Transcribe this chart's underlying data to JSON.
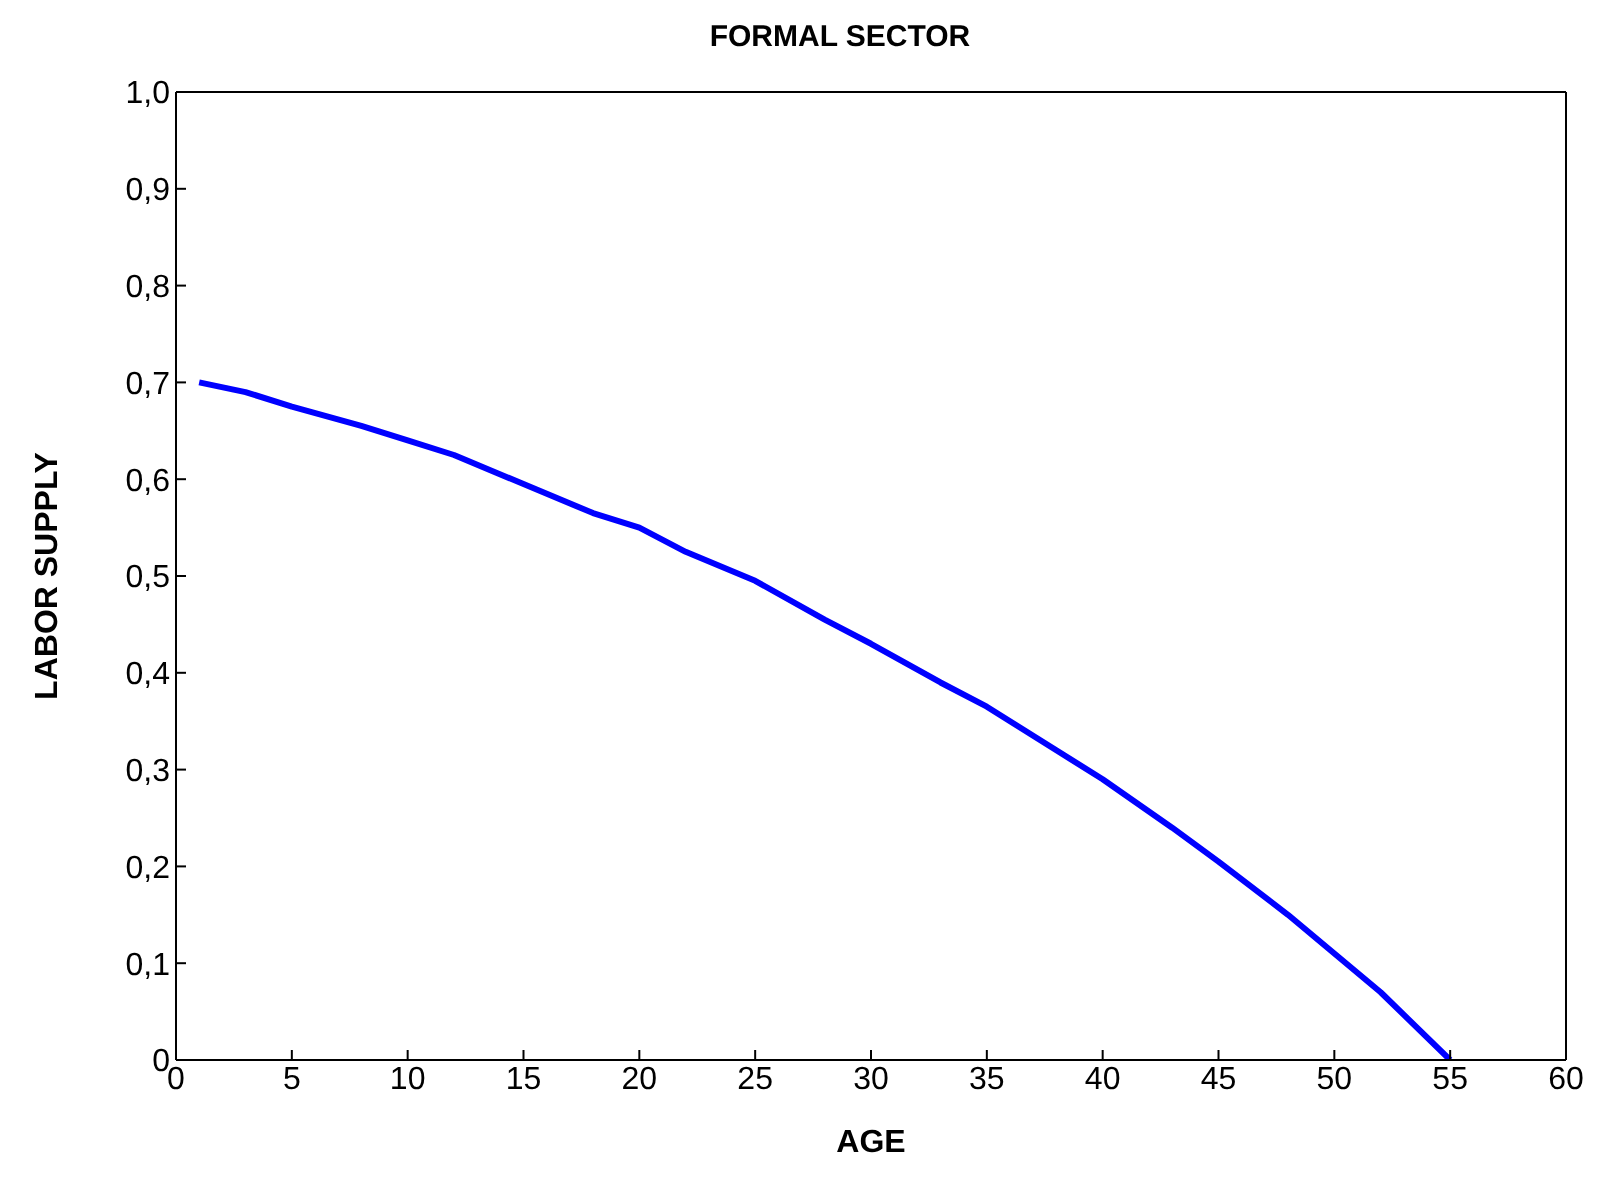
{
  "chart_data": {
    "type": "line",
    "title": "FORMAL SECTOR",
    "xlabel": "AGE",
    "ylabel": "LABOR SUPPLY",
    "x": [
      1,
      3,
      5,
      8,
      10,
      12,
      15,
      18,
      20,
      22,
      25,
      28,
      30,
      33,
      35,
      38,
      40,
      43,
      45,
      48,
      50,
      52,
      55
    ],
    "series": [
      {
        "color": "#0000ff",
        "values": [
          0.7,
          0.69,
          0.675,
          0.655,
          0.64,
          0.625,
          0.595,
          0.565,
          0.55,
          0.525,
          0.495,
          0.455,
          0.43,
          0.39,
          0.365,
          0.32,
          0.29,
          0.24,
          0.205,
          0.15,
          0.11,
          0.07,
          0.0
        ]
      }
    ],
    "xlim": [
      0,
      60
    ],
    "xticks": [
      0,
      5,
      10,
      15,
      20,
      25,
      30,
      35,
      40,
      45,
      50,
      55,
      60
    ],
    "ylim": [
      0,
      1
    ],
    "yticks": [
      0,
      {
        "value": 0.1,
        "label": "0,1"
      },
      {
        "value": 0.2,
        "label": "0,2"
      },
      {
        "value": 0.3,
        "label": "0,3"
      },
      {
        "value": 0.4,
        "label": "0,4"
      },
      {
        "value": 0.5,
        "label": "0,5"
      },
      {
        "value": 0.6,
        "label": "0,6"
      },
      {
        "value": 0.7,
        "label": "0,7"
      },
      {
        "value": 0.8,
        "label": "0,8"
      },
      {
        "value": 0.9,
        "label": "0,9"
      },
      {
        "value": 1,
        "label": "1,0"
      }
    ],
    "grid": false,
    "legend": false,
    "marker": "none",
    "line_style": "solid"
  }
}
